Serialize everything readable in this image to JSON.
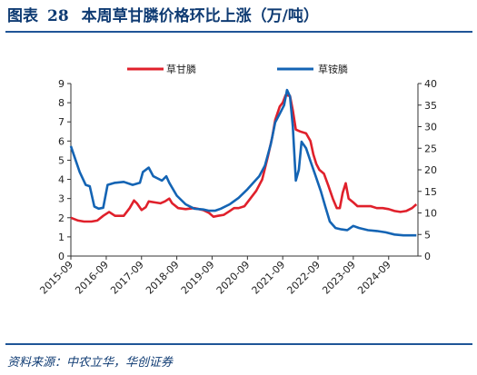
{
  "figure": {
    "label": "图表",
    "number": "28",
    "title": "本周草甘膦价格环比上涨（万/吨）"
  },
  "source": "资料来源：中农立华，华创证券",
  "chart_data": {
    "type": "line",
    "legend_position": "top",
    "grid": false,
    "series": [
      {
        "name": "草甘膦",
        "axis": "left",
        "color": "#e0202b",
        "points": [
          [
            "2015-09-01",
            2.0
          ],
          [
            "2015-11-15",
            1.85
          ],
          [
            "2016-01-15",
            1.8
          ],
          [
            "2016-04-01",
            1.8
          ],
          [
            "2016-06-01",
            1.85
          ],
          [
            "2016-08-01",
            2.1
          ],
          [
            "2016-10-01",
            2.3
          ],
          [
            "2016-12-01",
            2.1
          ],
          [
            "2017-03-01",
            2.1
          ],
          [
            "2017-05-01",
            2.5
          ],
          [
            "2017-06-15",
            2.9
          ],
          [
            "2017-07-15",
            2.75
          ],
          [
            "2017-09-01",
            2.4
          ],
          [
            "2017-10-15",
            2.55
          ],
          [
            "2017-11-15",
            2.85
          ],
          [
            "2018-01-15",
            2.8
          ],
          [
            "2018-03-15",
            2.75
          ],
          [
            "2018-05-01",
            2.85
          ],
          [
            "2018-06-15",
            3.0
          ],
          [
            "2018-07-15",
            2.75
          ],
          [
            "2018-09-15",
            2.5
          ],
          [
            "2018-12-01",
            2.45
          ],
          [
            "2019-03-01",
            2.5
          ],
          [
            "2019-06-01",
            2.4
          ],
          [
            "2019-08-01",
            2.25
          ],
          [
            "2019-09-15",
            2.05
          ],
          [
            "2019-11-01",
            2.1
          ],
          [
            "2020-01-01",
            2.15
          ],
          [
            "2020-03-01",
            2.35
          ],
          [
            "2020-04-15",
            2.5
          ],
          [
            "2020-06-01",
            2.5
          ],
          [
            "2020-08-01",
            2.6
          ],
          [
            "2020-10-01",
            3.0
          ],
          [
            "2020-12-01",
            3.4
          ],
          [
            "2021-02-01",
            4.0
          ],
          [
            "2021-04-01",
            5.2
          ],
          [
            "2021-05-15",
            6.2
          ],
          [
            "2021-06-15",
            7.1
          ],
          [
            "2021-08-01",
            7.8
          ],
          [
            "2021-09-01",
            8.0
          ],
          [
            "2021-10-01",
            8.4
          ],
          [
            "2021-11-15",
            8.35
          ],
          [
            "2021-12-15",
            7.6
          ],
          [
            "2022-01-15",
            6.6
          ],
          [
            "2022-03-01",
            6.5
          ],
          [
            "2022-05-01",
            6.4
          ],
          [
            "2022-06-15",
            6.0
          ],
          [
            "2022-07-15",
            5.3
          ],
          [
            "2022-08-15",
            4.8
          ],
          [
            "2022-09-15",
            4.5
          ],
          [
            "2022-11-01",
            4.3
          ],
          [
            "2022-12-15",
            3.7
          ],
          [
            "2023-02-01",
            3.0
          ],
          [
            "2023-03-15",
            2.5
          ],
          [
            "2023-04-15",
            2.5
          ],
          [
            "2023-05-15",
            3.3
          ],
          [
            "2023-06-15",
            3.8
          ],
          [
            "2023-07-15",
            3.0
          ],
          [
            "2023-09-01",
            2.8
          ],
          [
            "2023-10-15",
            2.6
          ],
          [
            "2024-01-01",
            2.6
          ],
          [
            "2024-03-01",
            2.6
          ],
          [
            "2024-05-01",
            2.5
          ],
          [
            "2024-07-01",
            2.5
          ],
          [
            "2024-09-01",
            2.45
          ],
          [
            "2024-11-01",
            2.35
          ],
          [
            "2025-01-01",
            2.3
          ],
          [
            "2025-03-01",
            2.35
          ],
          [
            "2025-05-01",
            2.5
          ],
          [
            "2025-06-15",
            2.7
          ]
        ]
      },
      {
        "name": "草铵膦",
        "axis": "right",
        "color": "#1464b4",
        "points": [
          [
            "2015-09-01",
            25.5
          ],
          [
            "2015-10-01",
            23.5
          ],
          [
            "2015-12-01",
            19.5
          ],
          [
            "2016-02-01",
            16.5
          ],
          [
            "2016-03-15",
            16.2
          ],
          [
            "2016-05-01",
            11.5
          ],
          [
            "2016-06-15",
            11.0
          ],
          [
            "2016-08-01",
            11.2
          ],
          [
            "2016-09-15",
            16.5
          ],
          [
            "2016-12-01",
            17.0
          ],
          [
            "2017-03-01",
            17.2
          ],
          [
            "2017-06-01",
            16.5
          ],
          [
            "2017-08-15",
            17.0
          ],
          [
            "2017-09-15",
            19.5
          ],
          [
            "2017-11-15",
            20.5
          ],
          [
            "2018-01-01",
            18.5
          ],
          [
            "2018-02-15",
            18.0
          ],
          [
            "2018-04-01",
            17.5
          ],
          [
            "2018-05-15",
            18.5
          ],
          [
            "2018-06-15",
            17.0
          ],
          [
            "2018-09-01",
            14.0
          ],
          [
            "2018-12-01",
            12.0
          ],
          [
            "2019-03-01",
            11.0
          ],
          [
            "2019-06-01",
            10.8
          ],
          [
            "2019-08-01",
            10.5
          ],
          [
            "2019-10-01",
            10.5
          ],
          [
            "2019-12-01",
            11.0
          ],
          [
            "2020-03-01",
            12.0
          ],
          [
            "2020-06-01",
            13.5
          ],
          [
            "2020-09-01",
            15.5
          ],
          [
            "2020-11-01",
            17.0
          ],
          [
            "2021-01-01",
            18.5
          ],
          [
            "2021-03-01",
            21.0
          ],
          [
            "2021-05-01",
            26.0
          ],
          [
            "2021-06-15",
            31.0
          ],
          [
            "2021-08-01",
            33.0
          ],
          [
            "2021-09-15",
            35.0
          ],
          [
            "2021-10-15",
            38.5
          ],
          [
            "2021-11-15",
            37.0
          ],
          [
            "2021-12-15",
            30.0
          ],
          [
            "2022-01-15",
            17.5
          ],
          [
            "2022-02-15",
            20.0
          ],
          [
            "2022-03-15",
            26.5
          ],
          [
            "2022-05-01",
            25.0
          ],
          [
            "2022-06-15",
            22.0
          ],
          [
            "2022-08-01",
            19.0
          ],
          [
            "2022-10-01",
            15.0
          ],
          [
            "2022-11-15",
            11.5
          ],
          [
            "2023-01-01",
            8.0
          ],
          [
            "2023-03-01",
            6.5
          ],
          [
            "2023-05-01",
            6.2
          ],
          [
            "2023-07-01",
            6.0
          ],
          [
            "2023-09-01",
            7.0
          ],
          [
            "2023-11-01",
            6.5
          ],
          [
            "2024-02-01",
            6.0
          ],
          [
            "2024-05-01",
            5.8
          ],
          [
            "2024-08-01",
            5.5
          ],
          [
            "2024-11-01",
            5.0
          ],
          [
            "2025-02-01",
            4.8
          ],
          [
            "2025-06-15",
            4.8
          ]
        ]
      }
    ],
    "y_left": {
      "min": 0,
      "max": 9,
      "ticks": [
        "0",
        "1",
        "2",
        "3",
        "4",
        "5",
        "6",
        "7",
        "8",
        "9"
      ]
    },
    "y_right": {
      "min": 0,
      "max": 40,
      "ticks": [
        "0",
        "5",
        "10",
        "15",
        "20",
        "25",
        "30",
        "35",
        "40"
      ]
    },
    "x_axis": {
      "min": "2015-09-01",
      "max": "2025-07-01",
      "ticks": [
        {
          "date": "2015-09-01",
          "label": "2015-09"
        },
        {
          "date": "2016-09-01",
          "label": "2016-09"
        },
        {
          "date": "2017-09-01",
          "label": "2017-09"
        },
        {
          "date": "2018-09-01",
          "label": "2018-09"
        },
        {
          "date": "2019-09-01",
          "label": "2019-09"
        },
        {
          "date": "2020-09-01",
          "label": "2020-09"
        },
        {
          "date": "2021-09-01",
          "label": "2021-09"
        },
        {
          "date": "2022-09-01",
          "label": "2022-09"
        },
        {
          "date": "2023-09-01",
          "label": "2023-09"
        },
        {
          "date": "2024-09-01",
          "label": "2024-09"
        }
      ]
    }
  }
}
